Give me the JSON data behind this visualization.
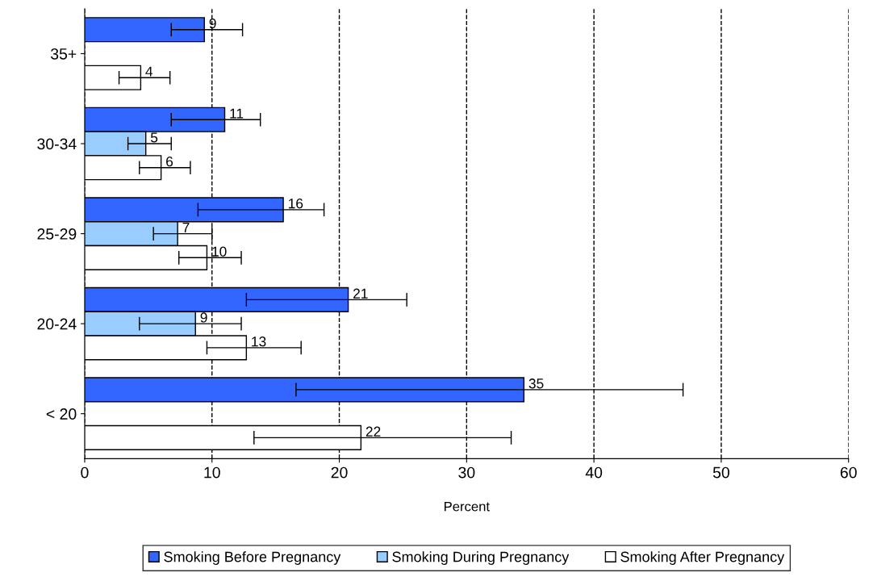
{
  "chart_data": {
    "type": "bar",
    "orientation": "horizontal",
    "xlabel": "Percent",
    "categories": [
      "35+",
      "30-34",
      "25-29",
      "20-24",
      "< 20"
    ],
    "series": [
      {
        "name": "Smoking Before Pregnancy",
        "color": "#3366ff",
        "values": [
          9.4,
          11.0,
          15.6,
          20.7,
          34.5
        ],
        "errors": [
          [
            6.8,
            12.4
          ],
          [
            6.8,
            13.8
          ],
          [
            8.9,
            18.8
          ],
          [
            12.7,
            25.3
          ],
          [
            16.6,
            47.0
          ]
        ],
        "value_labels": [
          "9",
          "11",
          "16",
          "21",
          "35"
        ]
      },
      {
        "name": "Smoking During Pregnancy",
        "color": "#99ccff",
        "values": [
          null,
          4.8,
          7.3,
          8.7,
          null
        ],
        "errors": [
          null,
          [
            3.4,
            6.8
          ],
          [
            5.4,
            10.0
          ],
          [
            4.3,
            12.3
          ],
          null
        ],
        "value_labels": [
          null,
          "5",
          "7",
          "9",
          null
        ]
      },
      {
        "name": "Smoking After Pregnancy",
        "color": "#ffffff",
        "values": [
          4.4,
          6.0,
          9.6,
          12.7,
          21.7
        ],
        "errors": [
          [
            2.7,
            6.7
          ],
          [
            4.3,
            8.3
          ],
          [
            7.4,
            12.3
          ],
          [
            9.6,
            17.0
          ],
          [
            13.3,
            33.5
          ]
        ],
        "value_labels": [
          "4",
          "6",
          "10",
          "13",
          "22"
        ]
      }
    ],
    "xlim": [
      0,
      60
    ],
    "xticks": [
      0,
      10,
      20,
      30,
      40,
      50,
      60
    ],
    "grid": "x",
    "legend": "bottom"
  }
}
